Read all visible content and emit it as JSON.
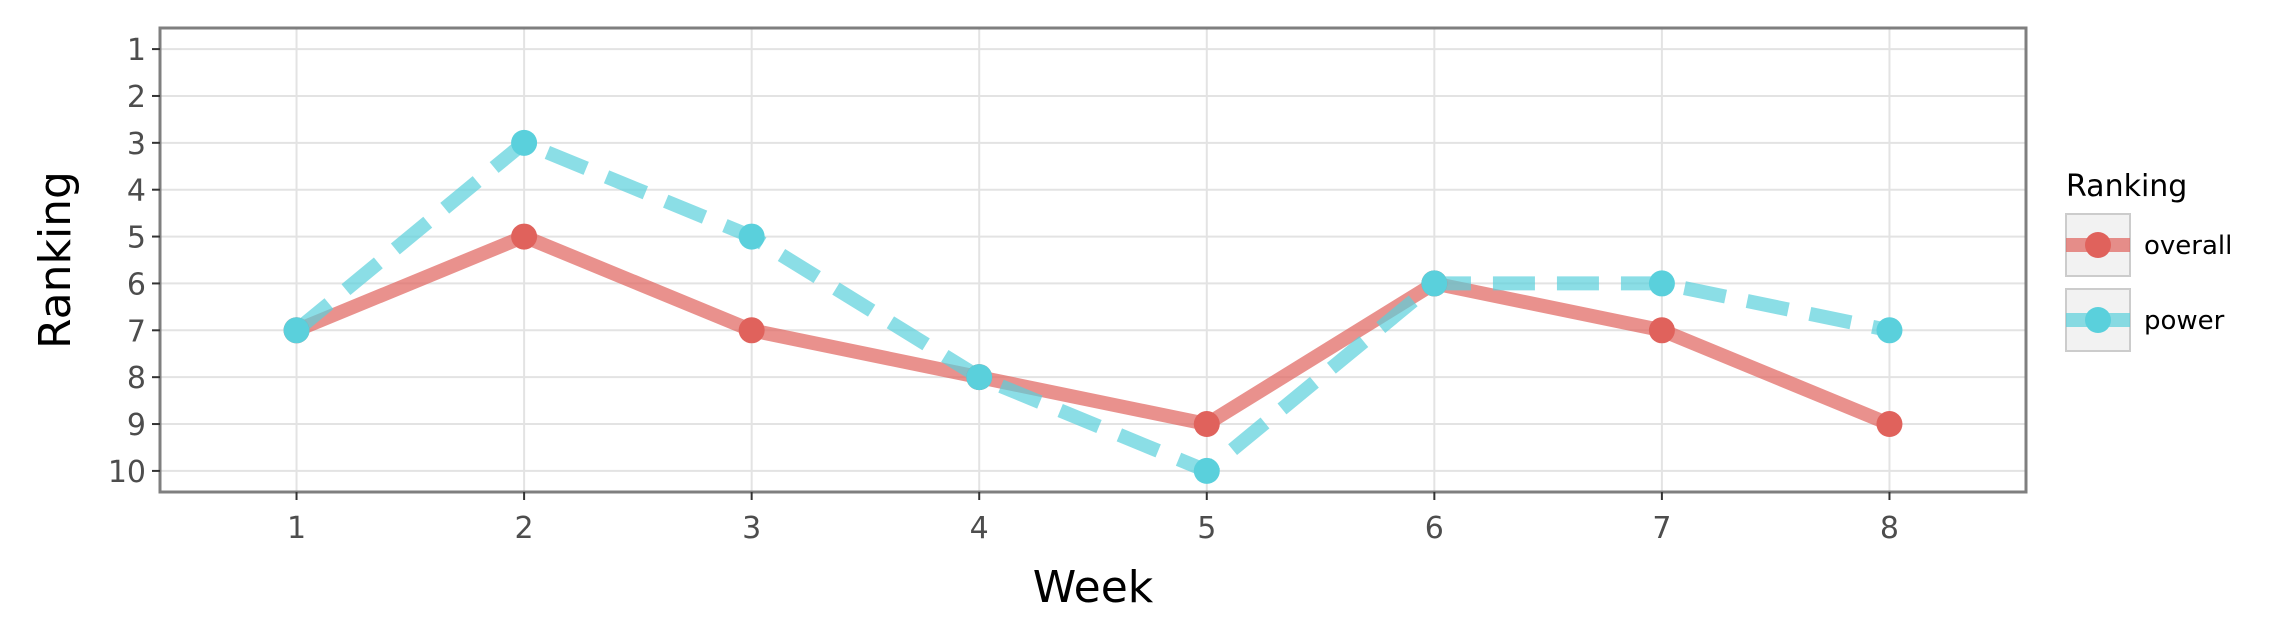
{
  "chart_data": {
    "type": "line",
    "title": "",
    "xlabel": "Week",
    "ylabel": "Ranking",
    "x": [
      1,
      2,
      3,
      4,
      5,
      6,
      7,
      8
    ],
    "x_tick_labels": [
      "1",
      "2",
      "3",
      "4",
      "5",
      "6",
      "7",
      "8"
    ],
    "y_tick_labels": [
      "1",
      "2",
      "3",
      "4",
      "5",
      "6",
      "7",
      "8",
      "9",
      "10"
    ],
    "xlim": [
      0.4,
      8.6
    ],
    "ylim": [
      10.45,
      0.55
    ],
    "y_axis_reversed": true,
    "grid": true,
    "legend": {
      "title": "Ranking",
      "position": "right"
    },
    "series": [
      {
        "name": "overall",
        "values": [
          7,
          5,
          7,
          8,
          9,
          6,
          7,
          9
        ],
        "color": "#e0625c",
        "linestyle": "solid"
      },
      {
        "name": "power",
        "values": [
          7,
          3,
          5,
          8,
          10,
          6,
          6,
          7
        ],
        "color": "#5ad0dc",
        "linestyle": "dashed"
      }
    ]
  }
}
